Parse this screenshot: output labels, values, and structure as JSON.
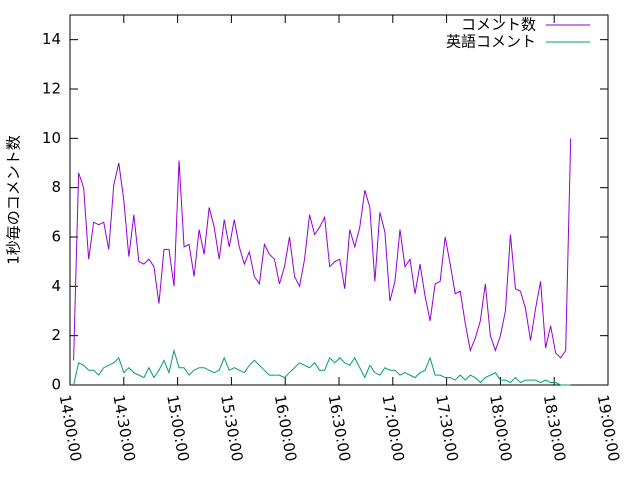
{
  "chart_data": {
    "type": "line",
    "y_label": "1秒毎のコメント数",
    "x": [
      "14:02:00",
      "14:04:48",
      "14:07:36",
      "14:10:24",
      "14:13:12",
      "14:16:00",
      "14:18:48",
      "14:21:36",
      "14:24:24",
      "14:27:12",
      "14:30:00",
      "14:32:48",
      "14:35:36",
      "14:38:24",
      "14:41:12",
      "14:44:00",
      "14:46:48",
      "14:49:36",
      "14:52:24",
      "14:55:12",
      "14:58:00",
      "15:00:48",
      "15:03:36",
      "15:06:24",
      "15:09:12",
      "15:12:00",
      "15:14:48",
      "15:17:36",
      "15:20:24",
      "15:23:12",
      "15:26:00",
      "15:28:48",
      "15:31:36",
      "15:34:24",
      "15:37:12",
      "15:40:00",
      "15:42:48",
      "15:45:36",
      "15:48:24",
      "15:51:12",
      "15:54:00",
      "15:56:48",
      "15:59:36",
      "16:02:24",
      "16:05:12",
      "16:08:00",
      "16:10:48",
      "16:13:36",
      "16:16:24",
      "16:19:12",
      "16:22:00",
      "16:24:48",
      "16:27:36",
      "16:30:24",
      "16:33:12",
      "16:36:00",
      "16:38:48",
      "16:41:36",
      "16:44:24",
      "16:47:12",
      "16:50:00",
      "16:52:48",
      "16:55:36",
      "16:58:24",
      "17:01:12",
      "17:04:00",
      "17:06:48",
      "17:09:36",
      "17:12:24",
      "17:15:12",
      "17:18:00",
      "17:20:48",
      "17:23:36",
      "17:26:24",
      "17:29:12",
      "17:32:00",
      "17:34:48",
      "17:37:36",
      "17:40:24",
      "17:43:12",
      "17:46:00",
      "17:48:48",
      "17:51:36",
      "17:54:24",
      "17:57:12",
      "18:00:00",
      "18:02:48",
      "18:05:36",
      "18:08:24",
      "18:11:12",
      "18:14:00",
      "18:16:48",
      "18:19:36",
      "18:22:24",
      "18:25:12",
      "18:28:00",
      "18:30:48",
      "18:33:36",
      "18:36:24",
      "18:39:12"
    ],
    "series": [
      {
        "name": "コメント数",
        "color": "#9400d3",
        "values": [
          1.0,
          8.6,
          8.0,
          5.1,
          6.6,
          6.5,
          6.6,
          5.5,
          8.1,
          9.0,
          7.5,
          5.2,
          6.9,
          5.0,
          4.9,
          5.1,
          4.8,
          3.3,
          5.5,
          5.5,
          4.0,
          9.1,
          5.6,
          5.7,
          4.4,
          6.3,
          5.3,
          7.2,
          6.4,
          5.1,
          6.7,
          5.6,
          6.7,
          5.6,
          4.9,
          5.4,
          4.4,
          4.1,
          5.7,
          5.3,
          5.1,
          4.1,
          4.8,
          6.0,
          4.4,
          4.0,
          5.1,
          6.9,
          6.1,
          6.4,
          6.8,
          4.8,
          5.0,
          5.1,
          3.9,
          6.3,
          5.6,
          6.4,
          7.9,
          7.2,
          4.2,
          7.0,
          6.2,
          3.4,
          4.2,
          6.3,
          4.8,
          5.1,
          3.7,
          4.9,
          3.6,
          2.6,
          4.1,
          4.2,
          6.0,
          4.9,
          3.7,
          3.8,
          2.5,
          1.4,
          1.9,
          2.6,
          4.1,
          2.0,
          1.4,
          2.0,
          3.0,
          6.1,
          3.9,
          3.8,
          3.1,
          1.8,
          3.1,
          4.2,
          1.5,
          2.4,
          1.3,
          1.1,
          1.4,
          10.0
        ]
      },
      {
        "name": "英語コメント",
        "color": "#009e73",
        "values": [
          0,
          0.9,
          0.8,
          0.6,
          0.6,
          0.4,
          0.7,
          0.8,
          0.9,
          1.1,
          0.5,
          0.7,
          0.5,
          0.4,
          0.3,
          0.7,
          0.3,
          0.6,
          1.0,
          0.5,
          1.4,
          0.7,
          0.7,
          0.4,
          0.6,
          0.7,
          0.7,
          0.6,
          0.5,
          0.6,
          1.1,
          0.6,
          0.7,
          0.6,
          0.5,
          0.8,
          1.0,
          0.8,
          0.6,
          0.4,
          0.4,
          0.4,
          0.3,
          0.5,
          0.7,
          0.9,
          0.8,
          0.7,
          0.9,
          0.6,
          0.6,
          1.1,
          0.9,
          1.1,
          0.9,
          0.8,
          1.1,
          0.7,
          0.3,
          0.8,
          0.5,
          0.4,
          0.7,
          0.6,
          0.6,
          0.4,
          0.5,
          0.4,
          0.3,
          0.5,
          0.6,
          1.1,
          0.4,
          0.4,
          0.3,
          0.3,
          0.2,
          0.4,
          0.2,
          0.4,
          0.3,
          0.1,
          0.3,
          0.4,
          0.5,
          0.2,
          0.2,
          0.1,
          0.3,
          0.1,
          0.2,
          0.2,
          0.2,
          0.1,
          0.2,
          0.1,
          0.1,
          0,
          0,
          0
        ]
      }
    ],
    "xlim": [
      "14:00:00",
      "19:00:00"
    ],
    "xticks": [
      "14:00:00",
      "14:30:00",
      "15:00:00",
      "15:30:00",
      "16:00:00",
      "16:30:00",
      "17:00:00",
      "17:30:00",
      "18:00:00",
      "18:30:00",
      "19:00:00"
    ],
    "ylim": [
      0,
      15
    ],
    "yticks": [
      0,
      2,
      4,
      6,
      8,
      10,
      12,
      14
    ],
    "grid": false,
    "legend": "top-right"
  }
}
